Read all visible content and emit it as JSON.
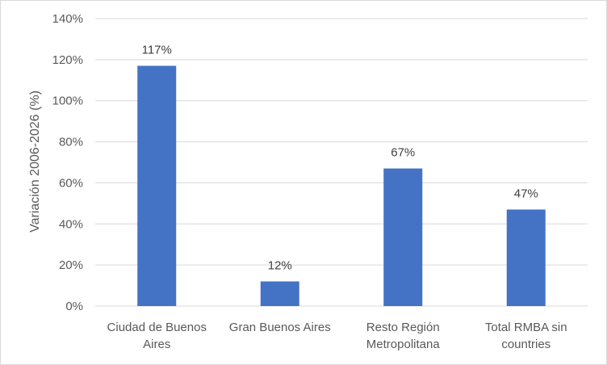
{
  "chart_data": {
    "type": "bar",
    "categories": [
      [
        "Ciudad de Buenos",
        "Aires"
      ],
      [
        "Gran Buenos Aires"
      ],
      [
        "Resto Región",
        "Metropolitana"
      ],
      [
        "Total RMBA sin",
        "countries"
      ]
    ],
    "values": [
      117,
      12,
      67,
      47
    ],
    "data_labels": [
      "117%",
      "12%",
      "67%",
      "47%"
    ],
    "title": "",
    "xlabel": "",
    "ylabel": "Variación 2006-2026 (%)",
    "ylim": [
      0,
      140
    ],
    "yticks": [
      0,
      20,
      40,
      60,
      80,
      100,
      120,
      140
    ],
    "ytick_labels": [
      "0%",
      "20%",
      "40%",
      "60%",
      "80%",
      "100%",
      "120%",
      "140%"
    ],
    "grid": true,
    "bar_color": "#4472c4",
    "grid_color": "#d9d9d9"
  }
}
